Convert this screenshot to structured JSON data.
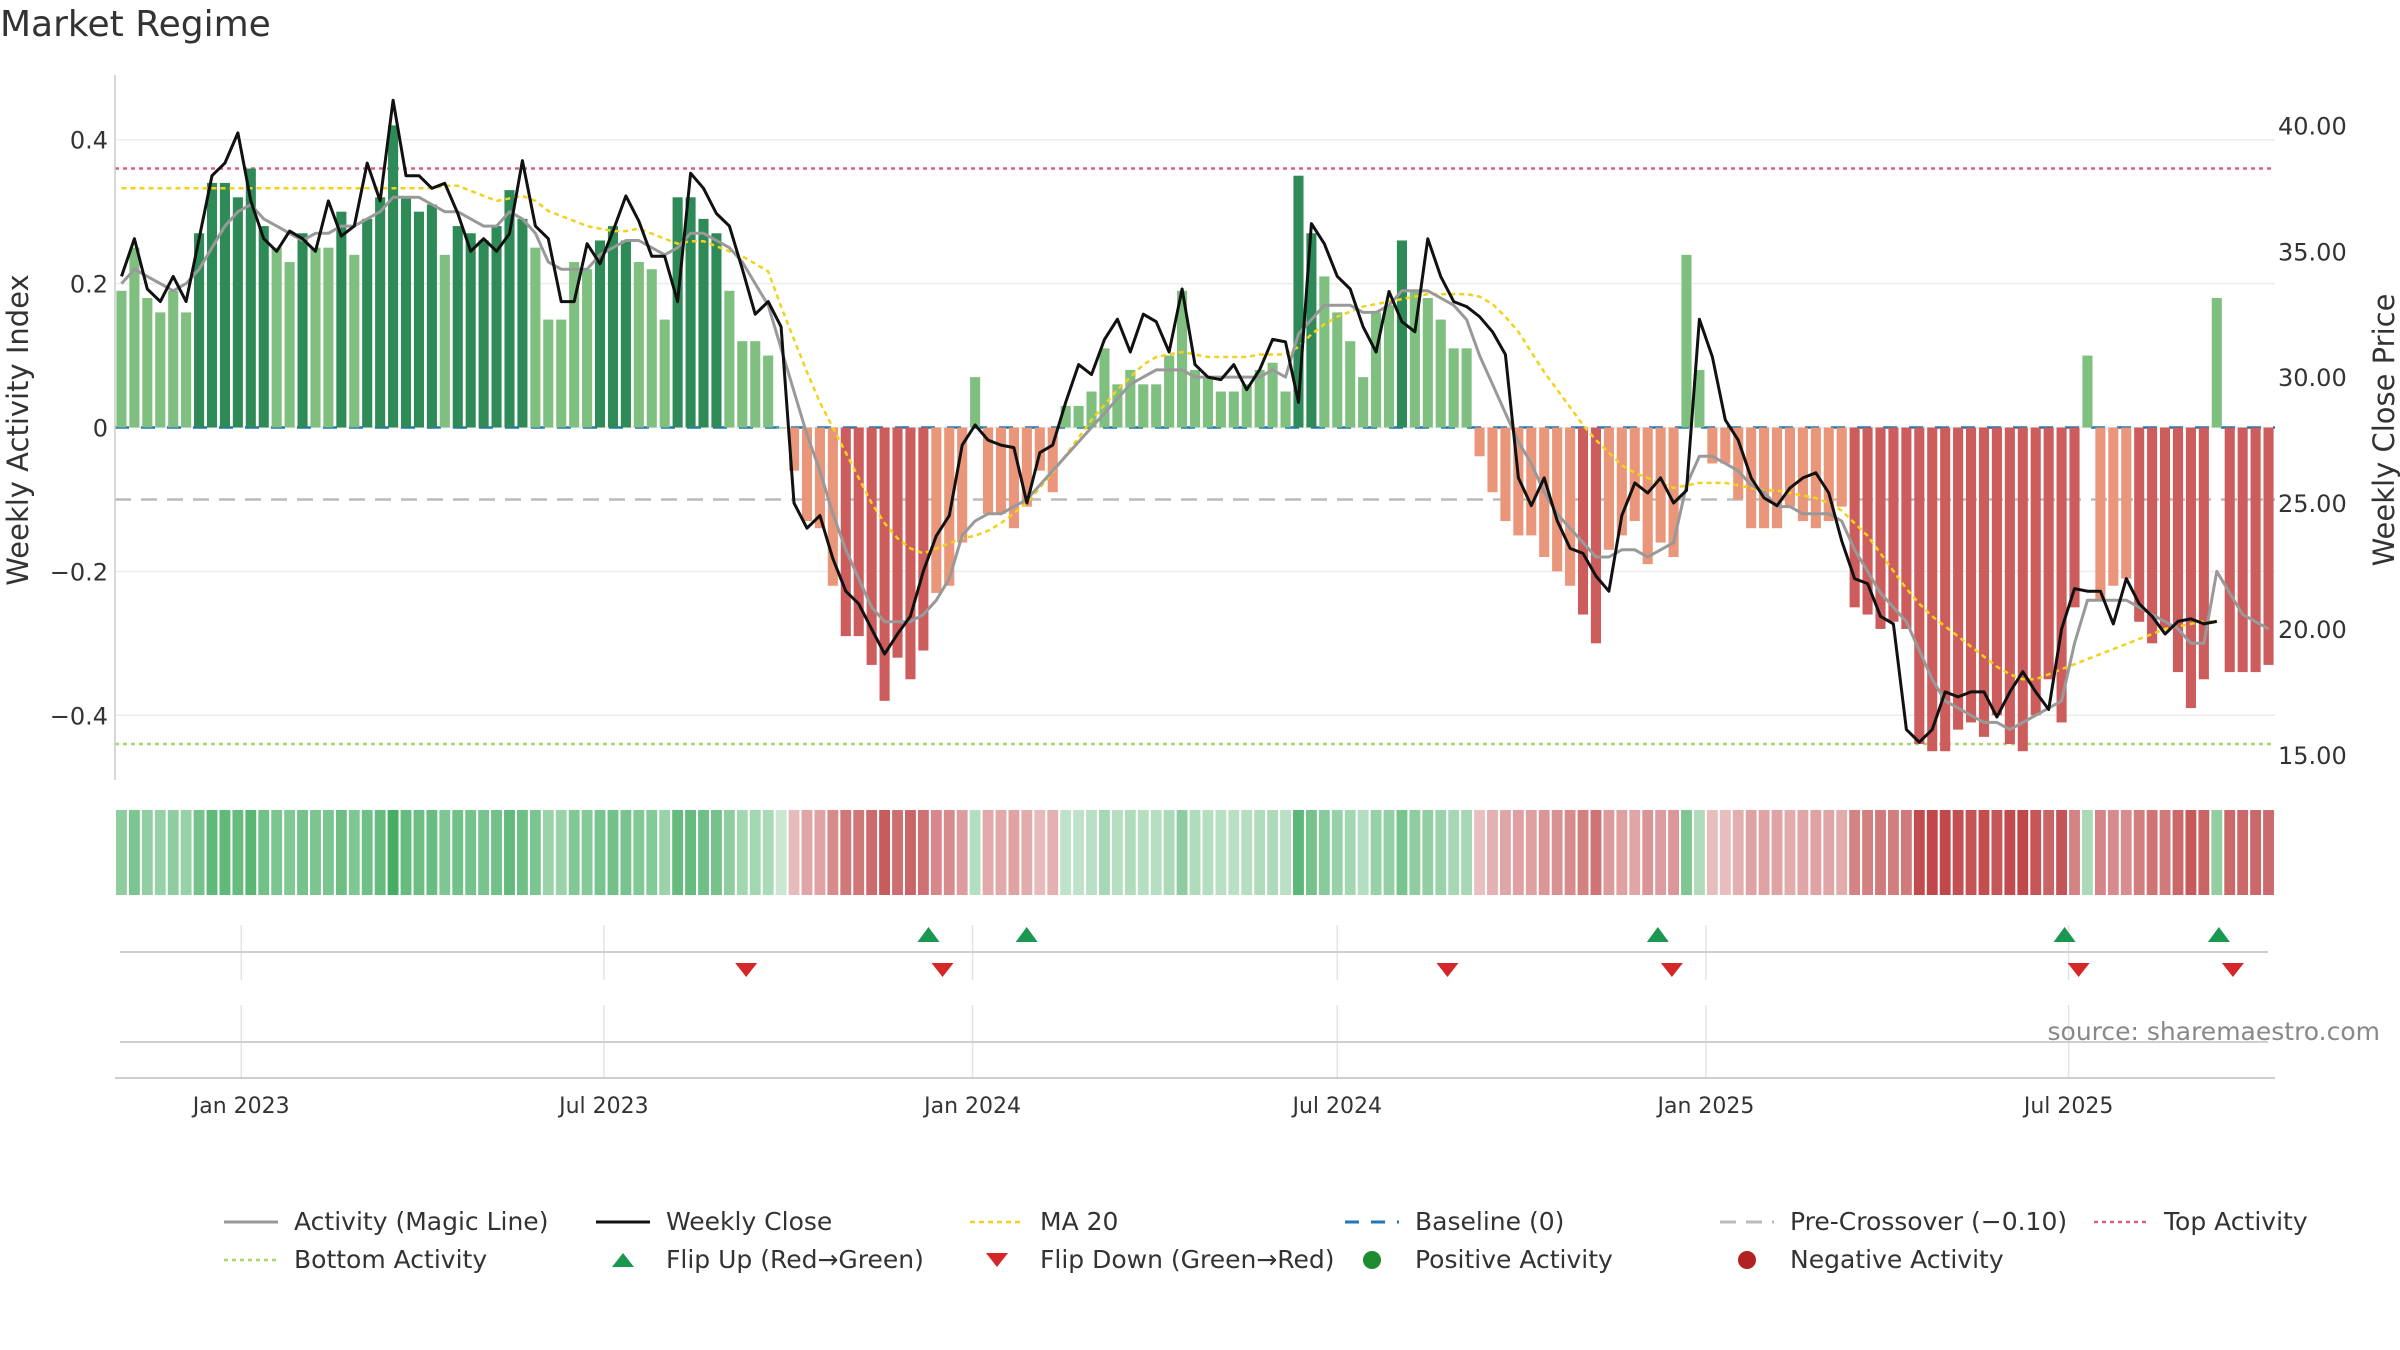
{
  "chart_data": {
    "type": "bar",
    "title": "Market Regime",
    "ylabel": "Weekly Activity Index",
    "y2label": "Weekly Close Price",
    "ylim": [
      -0.49,
      0.49
    ],
    "y2lim": [
      14.0,
      42.0
    ],
    "yticks": [
      {
        "v": 0.4,
        "label": "0.4"
      },
      {
        "v": 0.2,
        "label": "0.2"
      },
      {
        "v": 0,
        "label": "0"
      },
      {
        "v": -0.2,
        "label": "−0.2"
      },
      {
        "v": -0.4,
        "label": "−0.4"
      }
    ],
    "y2ticks": [
      {
        "v": 40,
        "label": "40.00"
      },
      {
        "v": 35,
        "label": "35.00"
      },
      {
        "v": 30,
        "label": "30.00"
      },
      {
        "v": 25,
        "label": "25.00"
      },
      {
        "v": 20,
        "label": "20.00"
      },
      {
        "v": 15,
        "label": "15.00"
      }
    ],
    "xticks": [
      {
        "date": "2023-01-01",
        "label": "Jan 2023"
      },
      {
        "date": "2023-07-01",
        "label": "Jul 2023"
      },
      {
        "date": "2024-01-01",
        "label": "Jan 2024"
      },
      {
        "date": "2024-07-01",
        "label": "Jul 2024"
      },
      {
        "date": "2025-01-01",
        "label": "Jan 2025"
      },
      {
        "date": "2025-07-01",
        "label": "Jul 2025"
      }
    ],
    "start_date": "2022-10-30",
    "end_date": "2025-10-12",
    "activity": [
      0.19,
      0.25,
      0.18,
      0.16,
      0.19,
      0.16,
      0.27,
      0.34,
      0.34,
      0.32,
      0.36,
      0.28,
      0.25,
      0.23,
      0.27,
      0.25,
      0.25,
      0.3,
      0.24,
      0.29,
      0.32,
      0.42,
      0.32,
      0.3,
      0.31,
      0.24,
      0.28,
      0.27,
      0.26,
      0.28,
      0.33,
      0.29,
      0.25,
      0.15,
      0.15,
      0.23,
      0.22,
      0.26,
      0.28,
      0.26,
      0.23,
      0.22,
      0.15,
      0.32,
      0.32,
      0.29,
      0.27,
      0.19,
      0.12,
      0.12,
      0.1,
      0.0,
      -0.06,
      -0.13,
      -0.14,
      -0.22,
      -0.29,
      -0.29,
      -0.33,
      -0.38,
      -0.32,
      -0.35,
      -0.31,
      -0.23,
      -0.22,
      -0.16,
      0.07,
      -0.12,
      -0.12,
      -0.14,
      -0.11,
      -0.06,
      -0.09,
      0.03,
      0.03,
      0.05,
      0.11,
      0.06,
      0.08,
      0.06,
      0.06,
      0.1,
      0.19,
      0.08,
      0.07,
      0.05,
      0.05,
      0.06,
      0.08,
      0.09,
      0.05,
      0.35,
      0.27,
      0.21,
      0.16,
      0.12,
      0.07,
      0.16,
      0.17,
      0.26,
      0.19,
      0.18,
      0.15,
      0.11,
      0.11,
      -0.04,
      -0.09,
      -0.13,
      -0.15,
      -0.15,
      -0.18,
      -0.2,
      -0.22,
      -0.26,
      -0.3,
      -0.17,
      -0.15,
      -0.13,
      -0.19,
      -0.16,
      -0.18,
      0.24,
      0.08,
      -0.05,
      -0.05,
      -0.1,
      -0.14,
      -0.14,
      -0.14,
      -0.11,
      -0.13,
      -0.14,
      -0.13,
      -0.11,
      -0.25,
      -0.26,
      -0.28,
      -0.27,
      -0.28,
      -0.44,
      -0.45,
      -0.45,
      -0.42,
      -0.41,
      -0.43,
      -0.4,
      -0.44,
      -0.45,
      -0.4,
      -0.35,
      -0.41,
      -0.25,
      0.1,
      -0.24,
      -0.22,
      -0.21,
      -0.27,
      -0.3,
      -0.28,
      -0.34,
      -0.39,
      -0.35,
      0.18,
      -0.34,
      -0.34,
      -0.34,
      -0.33
    ],
    "close": [
      34.0,
      35.5,
      33.5,
      33.0,
      34.0,
      33.0,
      35.5,
      38.0,
      38.5,
      39.7,
      37.0,
      35.5,
      35.0,
      35.8,
      35.5,
      35.0,
      37.0,
      35.6,
      36.0,
      38.5,
      37.0,
      41.0,
      38.0,
      38.0,
      37.5,
      37.7,
      36.5,
      35.0,
      35.5,
      35.0,
      35.7,
      38.6,
      36.0,
      35.5,
      33.0,
      33.0,
      35.3,
      34.5,
      35.8,
      37.2,
      36.2,
      34.8,
      34.8,
      33.0,
      38.1,
      37.5,
      36.5,
      36.0,
      34.3,
      32.5,
      33.0,
      32.0,
      25.0,
      24.0,
      24.5,
      22.8,
      21.5,
      21.0,
      20.0,
      19.0,
      19.8,
      20.5,
      22.3,
      23.7,
      24.5,
      27.3,
      28.1,
      27.5,
      27.3,
      27.2,
      25.0,
      27.0,
      27.3,
      29.0,
      30.5,
      30.1,
      31.5,
      32.3,
      31.0,
      32.5,
      32.2,
      31.0,
      33.5,
      30.5,
      30.0,
      29.9,
      30.5,
      29.5,
      30.3,
      31.5,
      31.4,
      29.0,
      36.1,
      35.3,
      34.0,
      33.5,
      32.0,
      31.0,
      33.4,
      32.2,
      31.8,
      35.5,
      34.0,
      33.0,
      32.8,
      32.4,
      31.8,
      30.9,
      26.0,
      24.9,
      26.0,
      24.3,
      23.2,
      23.0,
      22.1,
      21.5,
      24.5,
      25.8,
      25.4,
      26.0,
      25.0,
      25.5,
      32.3,
      30.8,
      28.3,
      27.5,
      26.0,
      25.2,
      24.9,
      25.6,
      26.0,
      26.2,
      25.4,
      23.5,
      22.0,
      21.8,
      20.5,
      20.2,
      16.0,
      15.5,
      16.0,
      17.5,
      17.3,
      17.5,
      17.5,
      16.5,
      17.5,
      18.3,
      17.5,
      16.8,
      20.0,
      21.6,
      21.5,
      21.5,
      20.2,
      22.0,
      21.0,
      20.5,
      19.8,
      20.3,
      20.4,
      20.2,
      20.3
    ],
    "activity_line": [
      0.2,
      0.22,
      0.21,
      0.2,
      0.19,
      0.2,
      0.22,
      0.25,
      0.28,
      0.3,
      0.31,
      0.29,
      0.28,
      0.27,
      0.26,
      0.27,
      0.27,
      0.28,
      0.28,
      0.29,
      0.3,
      0.32,
      0.32,
      0.32,
      0.31,
      0.3,
      0.3,
      0.29,
      0.28,
      0.28,
      0.3,
      0.29,
      0.27,
      0.23,
      0.22,
      0.22,
      0.22,
      0.24,
      0.25,
      0.26,
      0.26,
      0.25,
      0.24,
      0.25,
      0.27,
      0.27,
      0.26,
      0.25,
      0.23,
      0.2,
      0.17,
      0.11,
      0.05,
      -0.01,
      -0.06,
      -0.12,
      -0.17,
      -0.21,
      -0.25,
      -0.27,
      -0.27,
      -0.27,
      -0.26,
      -0.24,
      -0.21,
      -0.15,
      -0.13,
      -0.12,
      -0.12,
      -0.11,
      -0.1,
      -0.08,
      -0.06,
      -0.04,
      -0.02,
      0.0,
      0.02,
      0.04,
      0.06,
      0.07,
      0.08,
      0.08,
      0.08,
      0.07,
      0.07,
      0.07,
      0.07,
      0.07,
      0.07,
      0.08,
      0.07,
      0.13,
      0.15,
      0.17,
      0.17,
      0.17,
      0.16,
      0.16,
      0.17,
      0.19,
      0.19,
      0.19,
      0.18,
      0.17,
      0.15,
      0.1,
      0.06,
      0.02,
      -0.02,
      -0.05,
      -0.09,
      -0.12,
      -0.14,
      -0.16,
      -0.18,
      -0.18,
      -0.17,
      -0.17,
      -0.18,
      -0.17,
      -0.16,
      -0.08,
      -0.04,
      -0.04,
      -0.05,
      -0.06,
      -0.08,
      -0.09,
      -0.11,
      -0.11,
      -0.12,
      -0.12,
      -0.12,
      -0.13,
      -0.17,
      -0.2,
      -0.23,
      -0.25,
      -0.27,
      -0.31,
      -0.35,
      -0.38,
      -0.39,
      -0.4,
      -0.41,
      -0.41,
      -0.42,
      -0.41,
      -0.4,
      -0.39,
      -0.38,
      -0.3,
      -0.24,
      -0.24,
      -0.24,
      -0.24,
      -0.25,
      -0.26,
      -0.27,
      -0.28,
      -0.3,
      -0.3,
      -0.2,
      -0.23,
      -0.26,
      -0.27,
      -0.28
    ],
    "ma20": [
      37.5,
      37.5,
      37.5,
      37.5,
      37.5,
      37.5,
      37.5,
      37.5,
      37.5,
      37.5,
      37.5,
      37.5,
      37.5,
      37.5,
      37.5,
      37.5,
      37.5,
      37.5,
      37.5,
      37.5,
      37.5,
      37.5,
      37.5,
      37.5,
      37.5,
      37.6,
      37.6,
      37.4,
      37.2,
      37.0,
      37.1,
      37.2,
      37.0,
      36.6,
      36.4,
      36.2,
      36.0,
      35.9,
      35.8,
      35.8,
      35.9,
      35.7,
      35.5,
      35.3,
      35.4,
      35.4,
      35.2,
      35.0,
      34.8,
      34.5,
      34.2,
      32.8,
      31.5,
      30.2,
      29.0,
      28.0,
      27.0,
      26.0,
      25.0,
      24.2,
      23.6,
      23.2,
      23.0,
      23.2,
      23.4,
      23.6,
      23.7,
      23.9,
      24.2,
      24.6,
      25.0,
      25.6,
      26.2,
      26.9,
      27.6,
      28.3,
      28.9,
      29.5,
      30.0,
      30.5,
      30.8,
      30.9,
      31.0,
      30.9,
      30.8,
      30.8,
      30.8,
      30.8,
      30.9,
      30.9,
      30.9,
      31.2,
      31.7,
      32.1,
      32.4,
      32.6,
      32.8,
      32.9,
      33.0,
      33.1,
      33.2,
      33.3,
      33.3,
      33.3,
      33.3,
      33.2,
      32.9,
      32.4,
      31.8,
      31.0,
      30.2,
      29.5,
      28.8,
      28.1,
      27.5,
      27.0,
      26.5,
      26.2,
      26.0,
      25.8,
      25.6,
      25.7,
      25.8,
      25.8,
      25.8,
      25.7,
      25.6,
      25.5,
      25.5,
      25.4,
      25.3,
      25.2,
      25.0,
      24.7,
      24.2,
      23.7,
      23.0,
      22.3,
      21.6,
      21.0,
      20.5,
      20.1,
      19.7,
      19.3,
      18.9,
      18.5,
      18.2,
      18.0,
      18.0,
      18.2,
      18.4,
      18.6,
      18.8,
      19.0,
      19.2,
      19.4,
      19.6,
      19.8,
      20.0,
      20.1,
      20.2,
      20.3,
      20.3
    ],
    "top_activity": 0.36,
    "bottom_activity": -0.44,
    "pre_crossover": -0.1,
    "baseline": 0,
    "flip_up_dates": [
      "2023-12-10",
      "2024-01-28",
      "2024-12-08",
      "2025-06-29",
      "2025-09-14"
    ],
    "flip_down_dates": [
      "2023-09-10",
      "2023-12-17",
      "2024-08-25",
      "2024-12-15",
      "2025-07-06",
      "2025-09-21"
    ],
    "source_note": "source: sharemaestro.com",
    "colors": {
      "pos_strong": "#2e8b57",
      "pos_light": "#7fbf7f",
      "neg_strong": "#cd5c5c",
      "neg_light": "#e9967a",
      "close": "#111111",
      "activity_line": "#999999",
      "ma20": "#f2d21b",
      "baseline": "#1f77b4",
      "pre_crossover": "#bbbbbb",
      "top": "#d6608a",
      "bottom": "#a8d86a",
      "flip_up": "#1a9850",
      "flip_down": "#d62728",
      "pos_marker": "#1e8c2e",
      "neg_marker": "#b22222"
    },
    "legend": [
      {
        "key": "activity_line",
        "label": "Activity (Magic Line)"
      },
      {
        "key": "close",
        "label": "Weekly Close"
      },
      {
        "key": "ma20",
        "label": "MA 20"
      },
      {
        "key": "baseline",
        "label": "Baseline (0)"
      },
      {
        "key": "pre_crossover",
        "label": "Pre-Crossover (−0.10)"
      },
      {
        "key": "top",
        "label": "Top Activity"
      },
      {
        "key": "bottom",
        "label": "Bottom Activity"
      },
      {
        "key": "flip_up",
        "label": "Flip Up (Red→Green)"
      },
      {
        "key": "flip_down",
        "label": "Flip Down (Green→Red)"
      },
      {
        "key": "pos_marker",
        "label": "Positive Activity"
      },
      {
        "key": "neg_marker",
        "label": "Negative Activity"
      }
    ]
  }
}
